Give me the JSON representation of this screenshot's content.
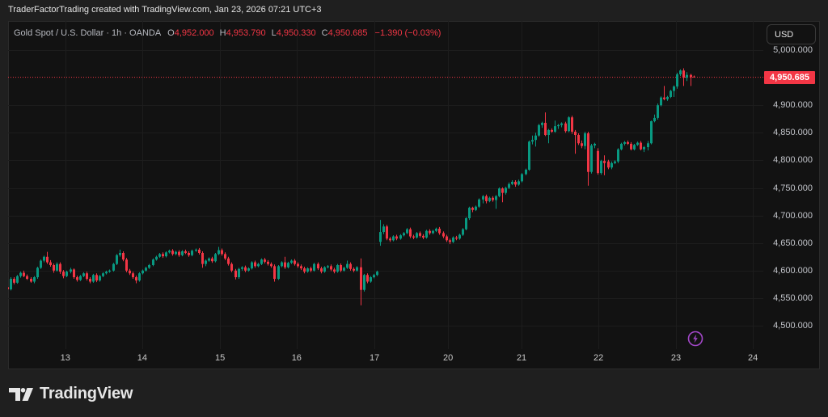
{
  "header": {
    "attribution": "TraderFactorTrading created with TradingView.com, Jan 23, 2026 07:21 UTC+3"
  },
  "legend": {
    "symbol": "Gold Spot / U.S. Dollar · 1h · OANDA",
    "o_label": "O",
    "o": "4,952.000",
    "h_label": "H",
    "h": "4,953.790",
    "l_label": "L",
    "l": "4,950.330",
    "c_label": "C",
    "c": "4,950.685",
    "change": "−1.390 (−0.03%)"
  },
  "currency_button": {
    "label": "USD"
  },
  "last_price": {
    "label": "4,950.685",
    "value": 4950.685
  },
  "event_marker": {
    "icon": "lightning-icon"
  },
  "footer": {
    "brand": "TradingView",
    "logo_icon": "tradingview-logo-icon"
  },
  "colors": {
    "bull": "#089981",
    "bear": "#f23645",
    "event": "#a347c9",
    "grid": "#1d1d1d"
  },
  "chart_data": {
    "type": "candlestick",
    "title": "Gold Spot / U.S. Dollar · 1h · OANDA",
    "xlabel": "",
    "ylabel": "USD",
    "ylim": [
      4457.5,
      5052.8
    ],
    "grid": true,
    "y_ticks": [
      {
        "label": "5,000.000",
        "value": 5000
      },
      {
        "label": "4,900.000",
        "value": 4900
      },
      {
        "label": "4,850.000",
        "value": 4850
      },
      {
        "label": "4,800.000",
        "value": 4800
      },
      {
        "label": "4,750.000",
        "value": 4750
      },
      {
        "label": "4,700.000",
        "value": 4700
      },
      {
        "label": "4,650.000",
        "value": 4650
      },
      {
        "label": "4,600.000",
        "value": 4600
      },
      {
        "label": "4,550.000",
        "value": 4550
      },
      {
        "label": "4,500.000",
        "value": 4500
      }
    ],
    "x_ticks": [
      {
        "label": "13",
        "bar": 17.6
      },
      {
        "label": "14",
        "bar": 40.9
      },
      {
        "label": "15",
        "bar": 64.5
      },
      {
        "label": "16",
        "bar": 87.7
      },
      {
        "label": "17",
        "bar": 111.3
      },
      {
        "label": "20",
        "bar": 133.6
      },
      {
        "label": "21",
        "bar": 155.9
      },
      {
        "label": "22",
        "bar": 179.2
      },
      {
        "label": "23",
        "bar": 202.7
      },
      {
        "label": "24",
        "bar": 226.0
      }
    ],
    "candle_format": [
      "open",
      "high",
      "low",
      "close"
    ],
    "candles": [
      [
        4570,
        4572,
        4562,
        4566
      ],
      [
        4566,
        4588,
        4564,
        4585
      ],
      [
        4585,
        4588,
        4575,
        4578
      ],
      [
        4578,
        4592,
        4576,
        4590
      ],
      [
        4590,
        4598,
        4587,
        4596
      ],
      [
        4596,
        4600,
        4588,
        4590
      ],
      [
        4590,
        4593,
        4583,
        4585
      ],
      [
        4585,
        4588,
        4578,
        4580
      ],
      [
        4580,
        4590,
        4577,
        4588
      ],
      [
        4588,
        4607,
        4585,
        4605
      ],
      [
        4605,
        4620,
        4603,
        4618
      ],
      [
        4618,
        4627,
        4615,
        4625
      ],
      [
        4625,
        4634,
        4612,
        4615
      ],
      [
        4615,
        4619,
        4607,
        4610
      ],
      [
        4610,
        4613,
        4596,
        4600
      ],
      [
        4600,
        4615,
        4598,
        4612
      ],
      [
        4612,
        4615,
        4594,
        4598
      ],
      [
        4598,
        4601,
        4586,
        4590
      ],
      [
        4590,
        4600,
        4588,
        4598
      ],
      [
        4598,
        4605,
        4595,
        4602
      ],
      [
        4602,
        4604,
        4585,
        4588
      ],
      [
        4588,
        4591,
        4580,
        4583
      ],
      [
        4583,
        4592,
        4581,
        4590
      ],
      [
        4590,
        4597,
        4588,
        4595
      ],
      [
        4595,
        4598,
        4582,
        4585
      ],
      [
        4585,
        4588,
        4577,
        4580
      ],
      [
        4580,
        4594,
        4578,
        4592
      ],
      [
        4592,
        4595,
        4579,
        4582
      ],
      [
        4582,
        4592,
        4580,
        4590
      ],
      [
        4590,
        4597,
        4588,
        4595
      ],
      [
        4595,
        4600,
        4593,
        4598
      ],
      [
        4598,
        4602,
        4596,
        4600
      ],
      [
        4600,
        4614,
        4598,
        4612
      ],
      [
        4612,
        4630,
        4610,
        4628
      ],
      [
        4628,
        4638,
        4625,
        4632
      ],
      [
        4632,
        4635,
        4617,
        4620
      ],
      [
        4620,
        4623,
        4597,
        4600
      ],
      [
        4600,
        4603,
        4592,
        4595
      ],
      [
        4595,
        4598,
        4585,
        4588
      ],
      [
        4588,
        4591,
        4577,
        4582
      ],
      [
        4582,
        4597,
        4580,
        4595
      ],
      [
        4595,
        4602,
        4593,
        4600
      ],
      [
        4600,
        4607,
        4598,
        4605
      ],
      [
        4605,
        4612,
        4603,
        4610
      ],
      [
        4610,
        4622,
        4608,
        4620
      ],
      [
        4620,
        4627,
        4618,
        4625
      ],
      [
        4625,
        4632,
        4623,
        4630
      ],
      [
        4630,
        4633,
        4623,
        4626
      ],
      [
        4626,
        4635,
        4624,
        4633
      ],
      [
        4633,
        4638,
        4631,
        4636
      ],
      [
        4636,
        4639,
        4627,
        4630
      ],
      [
        4630,
        4636,
        4628,
        4634
      ],
      [
        4634,
        4637,
        4625,
        4628
      ],
      [
        4628,
        4637,
        4626,
        4635
      ],
      [
        4635,
        4638,
        4630,
        4632
      ],
      [
        4632,
        4635,
        4625,
        4628
      ],
      [
        4628,
        4638,
        4626,
        4636
      ],
      [
        4636,
        4640,
        4634,
        4638
      ],
      [
        4638,
        4641,
        4629,
        4632
      ],
      [
        4632,
        4635,
        4605,
        4612
      ],
      [
        4612,
        4620,
        4608,
        4618
      ],
      [
        4618,
        4624,
        4616,
        4622
      ],
      [
        4622,
        4625,
        4614,
        4617
      ],
      [
        4617,
        4632,
        4615,
        4630
      ],
      [
        4630,
        4643,
        4628,
        4637
      ],
      [
        4637,
        4640,
        4627,
        4630
      ],
      [
        4630,
        4633,
        4619,
        4622
      ],
      [
        4622,
        4625,
        4609,
        4612
      ],
      [
        4612,
        4615,
        4597,
        4600
      ],
      [
        4600,
        4603,
        4584,
        4588
      ],
      [
        4588,
        4605,
        4585,
        4603
      ],
      [
        4603,
        4608,
        4600,
        4606
      ],
      [
        4606,
        4609,
        4597,
        4600
      ],
      [
        4600,
        4606,
        4598,
        4604
      ],
      [
        4604,
        4617,
        4602,
        4615
      ],
      [
        4615,
        4618,
        4605,
        4608
      ],
      [
        4608,
        4614,
        4606,
        4612
      ],
      [
        4612,
        4622,
        4610,
        4620
      ],
      [
        4620,
        4623,
        4613,
        4616
      ],
      [
        4616,
        4619,
        4609,
        4612
      ],
      [
        4612,
        4615,
        4605,
        4608
      ],
      [
        4608,
        4611,
        4580,
        4585
      ],
      [
        4585,
        4610,
        4583,
        4608
      ],
      [
        4608,
        4617,
        4606,
        4615
      ],
      [
        4615,
        4625,
        4603,
        4606
      ],
      [
        4606,
        4616,
        4604,
        4614
      ],
      [
        4614,
        4620,
        4612,
        4618
      ],
      [
        4618,
        4621,
        4609,
        4612
      ],
      [
        4612,
        4615,
        4605,
        4608
      ],
      [
        4608,
        4611,
        4601,
        4604
      ],
      [
        4604,
        4607,
        4595,
        4598
      ],
      [
        4598,
        4606,
        4596,
        4604
      ],
      [
        4604,
        4607,
        4597,
        4600
      ],
      [
        4600,
        4614,
        4598,
        4612
      ],
      [
        4612,
        4615,
        4601,
        4604
      ],
      [
        4604,
        4607,
        4595,
        4598
      ],
      [
        4598,
        4608,
        4596,
        4606
      ],
      [
        4606,
        4610,
        4604,
        4608
      ],
      [
        4608,
        4611,
        4599,
        4602
      ],
      [
        4602,
        4605,
        4595,
        4598
      ],
      [
        4598,
        4612,
        4596,
        4610
      ],
      [
        4610,
        4613,
        4597,
        4600
      ],
      [
        4600,
        4607,
        4598,
        4605
      ],
      [
        4605,
        4618,
        4603,
        4612
      ],
      [
        4612,
        4615,
        4600,
        4603
      ],
      [
        4603,
        4606,
        4597,
        4600
      ],
      [
        4600,
        4608,
        4598,
        4606
      ],
      [
        4606,
        4622,
        4537,
        4565
      ],
      [
        4565,
        4594,
        4562,
        4592
      ],
      [
        4592,
        4595,
        4577,
        4580
      ],
      [
        4580,
        4590,
        4578,
        4588
      ],
      [
        4588,
        4594,
        4586,
        4592
      ],
      [
        4592,
        4600,
        4590,
        4598
      ],
      [
        4652,
        4692,
        4645,
        4670
      ],
      [
        4670,
        4684,
        4666,
        4680
      ],
      [
        4680,
        4683,
        4655,
        4658
      ],
      [
        4658,
        4661,
        4652,
        4655
      ],
      [
        4655,
        4664,
        4653,
        4662
      ],
      [
        4662,
        4665,
        4655,
        4658
      ],
      [
        4658,
        4666,
        4656,
        4664
      ],
      [
        4664,
        4670,
        4662,
        4668
      ],
      [
        4668,
        4677,
        4666,
        4675
      ],
      [
        4675,
        4678,
        4659,
        4662
      ],
      [
        4662,
        4665,
        4657,
        4660
      ],
      [
        4660,
        4670,
        4658,
        4668
      ],
      [
        4668,
        4671,
        4660,
        4663
      ],
      [
        4663,
        4666,
        4657,
        4660
      ],
      [
        4660,
        4674,
        4658,
        4672
      ],
      [
        4672,
        4675,
        4665,
        4668
      ],
      [
        4668,
        4674,
        4666,
        4672
      ],
      [
        4672,
        4678,
        4670,
        4676
      ],
      [
        4676,
        4679,
        4665,
        4668
      ],
      [
        4668,
        4671,
        4659,
        4662
      ],
      [
        4662,
        4665,
        4652,
        4655
      ],
      [
        4655,
        4658,
        4648,
        4652
      ],
      [
        4652,
        4662,
        4650,
        4660
      ],
      [
        4660,
        4663,
        4655,
        4658
      ],
      [
        4658,
        4667,
        4656,
        4665
      ],
      [
        4665,
        4677,
        4663,
        4675
      ],
      [
        4675,
        4697,
        4673,
        4695
      ],
      [
        4695,
        4716,
        4692,
        4714
      ],
      [
        4714,
        4716,
        4706,
        4710
      ],
      [
        4710,
        4718,
        4708,
        4716
      ],
      [
        4716,
        4731,
        4714,
        4729
      ],
      [
        4729,
        4737,
        4722,
        4735
      ],
      [
        4735,
        4738,
        4722,
        4726
      ],
      [
        4726,
        4734,
        4724,
        4732
      ],
      [
        4732,
        4735,
        4725,
        4728
      ],
      [
        4728,
        4737,
        4712,
        4735
      ],
      [
        4735,
        4751,
        4733,
        4749
      ],
      [
        4749,
        4751,
        4724,
        4741
      ],
      [
        4741,
        4752,
        4738,
        4750
      ],
      [
        4750,
        4760,
        4748,
        4757
      ],
      [
        4757,
        4764,
        4755,
        4761
      ],
      [
        4761,
        4764,
        4752,
        4756
      ],
      [
        4756,
        4765,
        4754,
        4762
      ],
      [
        4762,
        4777,
        4760,
        4775
      ],
      [
        4775,
        4785,
        4773,
        4783
      ],
      [
        4783,
        4836,
        4781,
        4834
      ],
      [
        4834,
        4845,
        4829,
        4837
      ],
      [
        4837,
        4850,
        4825,
        4845
      ],
      [
        4845,
        4866,
        4843,
        4864
      ],
      [
        4864,
        4870,
        4859,
        4868
      ],
      [
        4868,
        4887,
        4844,
        4846
      ],
      [
        4846,
        4857,
        4831,
        4855
      ],
      [
        4855,
        4858,
        4850,
        4852
      ],
      [
        4852,
        4872,
        4850,
        4862
      ],
      [
        4862,
        4866,
        4857,
        4864
      ],
      [
        4864,
        4869,
        4860,
        4867
      ],
      [
        4867,
        4870,
        4850,
        4853
      ],
      [
        4853,
        4880,
        4851,
        4878
      ],
      [
        4878,
        4881,
        4848,
        4852
      ],
      [
        4852,
        4855,
        4812,
        4846
      ],
      [
        4846,
        4849,
        4828,
        4831
      ],
      [
        4831,
        4836,
        4822,
        4826
      ],
      [
        4826,
        4852,
        4820,
        4849
      ],
      [
        4849,
        4852,
        4754,
        4779
      ],
      [
        4779,
        4830,
        4776,
        4827
      ],
      [
        4827,
        4832,
        4822,
        4830
      ],
      [
        4817,
        4822,
        4774,
        4777
      ],
      [
        4777,
        4801,
        4774,
        4799
      ],
      [
        4799,
        4809,
        4773,
        4795
      ],
      [
        4798,
        4801,
        4784,
        4787
      ],
      [
        4787,
        4798,
        4784,
        4795
      ],
      [
        4795,
        4800,
        4793,
        4798
      ],
      [
        4798,
        4822,
        4795,
        4820
      ],
      [
        4820,
        4832,
        4818,
        4830
      ],
      [
        4830,
        4835,
        4827,
        4833
      ],
      [
        4833,
        4836,
        4828,
        4830
      ],
      [
        4830,
        4833,
        4818,
        4820
      ],
      [
        4820,
        4830,
        4818,
        4828
      ],
      [
        4828,
        4834,
        4826,
        4832
      ],
      [
        4832,
        4835,
        4818,
        4820
      ],
      [
        4820,
        4826,
        4815,
        4824
      ],
      [
        4824,
        4835,
        4818,
        4831
      ],
      [
        4831,
        4872,
        4829,
        4871
      ],
      [
        4871,
        4883,
        4869,
        4877
      ],
      [
        4877,
        4903,
        4874,
        4900
      ],
      [
        4900,
        4916,
        4898,
        4914
      ],
      [
        4914,
        4935,
        4909,
        4911
      ],
      [
        4911,
        4917,
        4908,
        4915
      ],
      [
        4915,
        4928,
        4913,
        4926
      ],
      [
        4926,
        4936,
        4915,
        4934
      ],
      [
        4934,
        4959,
        4930,
        4956
      ],
      [
        4956,
        4965,
        4953,
        4963
      ],
      [
        4963,
        4967,
        4935,
        4950
      ],
      [
        4950,
        4960,
        4944,
        4955
      ],
      [
        4955,
        4957,
        4935,
        4951
      ],
      [
        4952,
        4953.79,
        4950.33,
        4950.685
      ]
    ]
  }
}
